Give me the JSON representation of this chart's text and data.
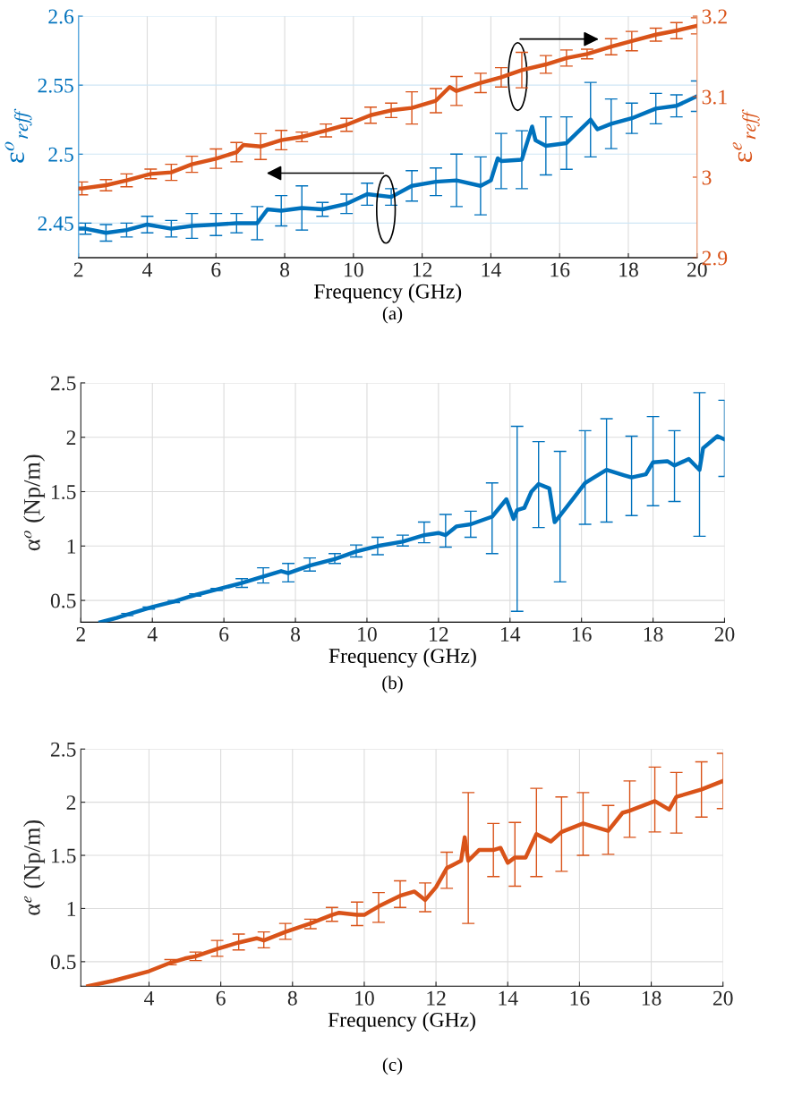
{
  "chart_data": [
    {
      "type": "line",
      "xlabel": "Frequency (GHz)",
      "ylabel": "ε$^{o}$$_{reff}$",
      "y2label": "ε$^{e}$$_{reff}$",
      "annotations": [
        "(a)"
      ],
      "xlim": [
        2,
        20
      ],
      "xticks": [
        2,
        4,
        6,
        8,
        10,
        12,
        14,
        16,
        18,
        20
      ],
      "ylim": [
        2.425,
        2.6
      ],
      "yticks": [
        2.45,
        2.5,
        2.55,
        2.6
      ],
      "y2lim": [
        2.9,
        3.2
      ],
      "y2ticks": [
        2.9,
        3,
        3.1,
        3.2
      ],
      "grid": true,
      "series": [
        {
          "color": "#0072bd",
          "axis": "y",
          "x": [
            2.0,
            2.2,
            2.8,
            3.4,
            4.0,
            4.7,
            5.3,
            6.0,
            6.6,
            7.2,
            7.5,
            7.9,
            8.5,
            9.1,
            9.8,
            10.4,
            11.1,
            11.7,
            12.4,
            13.0,
            13.7,
            14.0,
            14.2,
            14.3,
            14.9,
            15.2,
            15.3,
            15.6,
            16.2,
            16.9,
            17.1,
            17.5,
            18.1,
            18.8,
            19.4,
            20.0
          ],
          "values": [
            2.446,
            2.446,
            2.443,
            2.445,
            2.449,
            2.446,
            2.448,
            2.449,
            2.45,
            2.45,
            2.46,
            2.459,
            2.461,
            2.46,
            2.464,
            2.471,
            2.469,
            2.477,
            2.48,
            2.481,
            2.477,
            2.481,
            2.497,
            2.495,
            2.496,
            2.52,
            2.51,
            2.506,
            2.508,
            2.525,
            2.518,
            2.522,
            2.526,
            2.533,
            2.535,
            2.542
          ],
          "errors": [
            null,
            0.004,
            0.006,
            0.005,
            0.006,
            0.006,
            0.009,
            0.008,
            0.007,
            0.012,
            null,
            0.011,
            0.016,
            0.005,
            0.007,
            0.008,
            0.006,
            0.011,
            0.01,
            0.019,
            0.021,
            null,
            null,
            0.02,
            0.021,
            null,
            null,
            0.021,
            0.019,
            0.027,
            null,
            0.018,
            0.011,
            0.011,
            0.008,
            0.011
          ]
        },
        {
          "color": "#d95319",
          "axis": "y2",
          "x": [
            2.0,
            2.1,
            2.8,
            3.4,
            4.1,
            4.7,
            5.3,
            6.0,
            6.6,
            6.8,
            7.3,
            7.9,
            8.5,
            9.2,
            9.8,
            10.5,
            11.1,
            11.7,
            12.4,
            12.8,
            13.0,
            13.7,
            14.3,
            14.9,
            15.6,
            16.2,
            16.8,
            17.5,
            18.1,
            18.8,
            19.4,
            20.0
          ],
          "values": [
            2.986,
            2.986,
            2.99,
            2.996,
            3.004,
            3.006,
            3.016,
            3.023,
            3.031,
            3.04,
            3.038,
            3.046,
            3.05,
            3.058,
            3.065,
            3.077,
            3.083,
            3.086,
            3.095,
            3.112,
            3.107,
            3.117,
            3.124,
            3.133,
            3.14,
            3.148,
            3.153,
            3.162,
            3.169,
            3.177,
            3.182,
            3.188
          ],
          "errors": [
            null,
            0.008,
            0.007,
            0.008,
            0.006,
            0.01,
            0.01,
            0.012,
            0.012,
            null,
            0.016,
            0.012,
            0.006,
            0.008,
            0.008,
            0.01,
            0.009,
            0.02,
            0.015,
            null,
            0.018,
            0.012,
            0.012,
            0.022,
            0.011,
            0.01,
            0.006,
            0.01,
            0.012,
            0.008,
            0.01,
            0.01
          ]
        }
      ]
    },
    {
      "type": "line",
      "xlabel": "Frequency (GHz)",
      "ylabel": "α$^{o}$ (Np/m)",
      "annotations": [
        "(b)"
      ],
      "xlim": [
        2,
        20
      ],
      "xticks": [
        2,
        4,
        6,
        8,
        10,
        12,
        14,
        16,
        18,
        20
      ],
      "ylim": [
        0.3,
        2.5
      ],
      "yticks": [
        0.5,
        1,
        1.5,
        2,
        2.5
      ],
      "grid": true,
      "series": [
        {
          "color": "#0072bd",
          "x": [
            2.55,
            3.0,
            3.3,
            3.9,
            4.0,
            4.6,
            5.0,
            5.2,
            5.8,
            6.5,
            7.1,
            7.6,
            7.8,
            8.4,
            9.1,
            9.7,
            10.3,
            11.0,
            11.6,
            12.0,
            12.2,
            12.5,
            12.9,
            13.5,
            13.9,
            14.1,
            14.2,
            14.4,
            14.6,
            14.8,
            15.1,
            15.25,
            15.4,
            15.8,
            16.1,
            16.3,
            16.7,
            17.2,
            17.4,
            17.8,
            18.0,
            18.4,
            18.6,
            19.0,
            19.3,
            19.4,
            19.8,
            20.0
          ],
          "values": [
            0.3,
            0.34,
            0.37,
            0.43,
            0.44,
            0.49,
            0.53,
            0.55,
            0.6,
            0.66,
            0.72,
            0.77,
            0.75,
            0.82,
            0.88,
            0.95,
            1.0,
            1.04,
            1.1,
            1.12,
            1.1,
            1.18,
            1.2,
            1.27,
            1.43,
            1.25,
            1.33,
            1.35,
            1.5,
            1.57,
            1.53,
            1.22,
            1.28,
            1.45,
            1.58,
            1.62,
            1.7,
            1.65,
            1.63,
            1.66,
            1.77,
            1.78,
            1.74,
            1.8,
            1.7,
            1.9,
            2.01,
            1.98
          ],
          "errors": [
            null,
            null,
            [
              0.36,
              0.38
            ],
            [
              0.42,
              0.44
            ],
            null,
            [
              0.48,
              0.5
            ],
            null,
            [
              0.54,
              0.56
            ],
            [
              0.59,
              0.61
            ],
            [
              0.62,
              0.7
            ],
            [
              0.66,
              0.8
            ],
            null,
            [
              0.67,
              0.84
            ],
            [
              0.77,
              0.89
            ],
            [
              0.84,
              0.93
            ],
            [
              0.9,
              1.01
            ],
            [
              0.92,
              1.08
            ],
            [
              1.0,
              1.1
            ],
            [
              1.03,
              1.22
            ],
            null,
            [
              0.99,
              1.29
            ],
            null,
            [
              1.08,
              1.32
            ],
            [
              0.93,
              1.58
            ],
            null,
            null,
            [
              0.4,
              2.1
            ],
            null,
            null,
            [
              1.17,
              1.96
            ],
            null,
            null,
            [
              0.67,
              1.87
            ],
            null,
            [
              1.2,
              2.06
            ],
            null,
            [
              1.22,
              2.17
            ],
            null,
            [
              1.28,
              2.01
            ],
            null,
            [
              1.37,
              2.19
            ],
            null,
            [
              1.41,
              2.06
            ],
            null,
            [
              1.09,
              2.41
            ],
            null,
            null,
            [
              1.64,
              2.34
            ]
          ]
        }
      ]
    },
    {
      "type": "line",
      "xlabel": "Frequency (GHz)",
      "ylabel": "α$^{e}$ (Np/m)",
      "annotations": [
        "(c)"
      ],
      "xlim": [
        2.1,
        20
      ],
      "xticks": [
        4,
        6,
        8,
        10,
        12,
        14,
        16,
        18,
        20
      ],
      "ylim": [
        0.27,
        2.5
      ],
      "yticks": [
        0.5,
        1,
        1.5,
        2,
        2.5
      ],
      "grid": true,
      "series": [
        {
          "color": "#d95319",
          "x": [
            2.3,
            3.0,
            4.0,
            4.6,
            5.0,
            5.3,
            5.9,
            6.5,
            7.0,
            7.2,
            7.8,
            8.5,
            9.1,
            9.3,
            9.8,
            10.0,
            10.4,
            11.0,
            11.4,
            11.7,
            12.0,
            12.3,
            12.7,
            12.8,
            12.9,
            13.2,
            13.6,
            13.8,
            14.0,
            14.2,
            14.5,
            14.8,
            15.2,
            15.5,
            16.1,
            16.8,
            17.2,
            17.4,
            18.1,
            18.5,
            18.7,
            19.4,
            20.0
          ],
          "values": [
            0.27,
            0.32,
            0.41,
            0.49,
            0.53,
            0.55,
            0.62,
            0.68,
            0.72,
            0.7,
            0.78,
            0.86,
            0.94,
            0.96,
            0.94,
            0.94,
            1.02,
            1.12,
            1.16,
            1.08,
            1.2,
            1.38,
            1.45,
            1.67,
            1.45,
            1.55,
            1.55,
            1.57,
            1.43,
            1.48,
            1.48,
            1.7,
            1.63,
            1.72,
            1.8,
            1.73,
            1.9,
            1.92,
            2.01,
            1.93,
            2.05,
            2.12,
            2.2
          ],
          "errors": [
            null,
            null,
            null,
            [
              0.47,
              0.52
            ],
            null,
            [
              0.51,
              0.59
            ],
            [
              0.55,
              0.7
            ],
            [
              0.61,
              0.76
            ],
            null,
            [
              0.63,
              0.78
            ],
            [
              0.71,
              0.86
            ],
            [
              0.81,
              0.9
            ],
            [
              0.88,
              1.01
            ],
            null,
            [
              0.84,
              1.06
            ],
            null,
            [
              0.87,
              1.15
            ],
            [
              1.01,
              1.26
            ],
            null,
            [
              0.97,
              1.24
            ],
            null,
            [
              1.19,
              1.53
            ],
            null,
            null,
            [
              0.86,
              2.09
            ],
            null,
            [
              1.3,
              1.8
            ],
            null,
            null,
            [
              1.21,
              1.81
            ],
            null,
            [
              1.3,
              2.13
            ],
            null,
            [
              1.35,
              2.05
            ],
            [
              1.5,
              2.09
            ],
            [
              1.51,
              1.97
            ],
            null,
            [
              1.67,
              2.2
            ],
            [
              1.72,
              2.33
            ],
            null,
            [
              1.71,
              2.28
            ],
            [
              1.86,
              2.38
            ],
            [
              1.94,
              2.46
            ]
          ]
        }
      ]
    }
  ]
}
